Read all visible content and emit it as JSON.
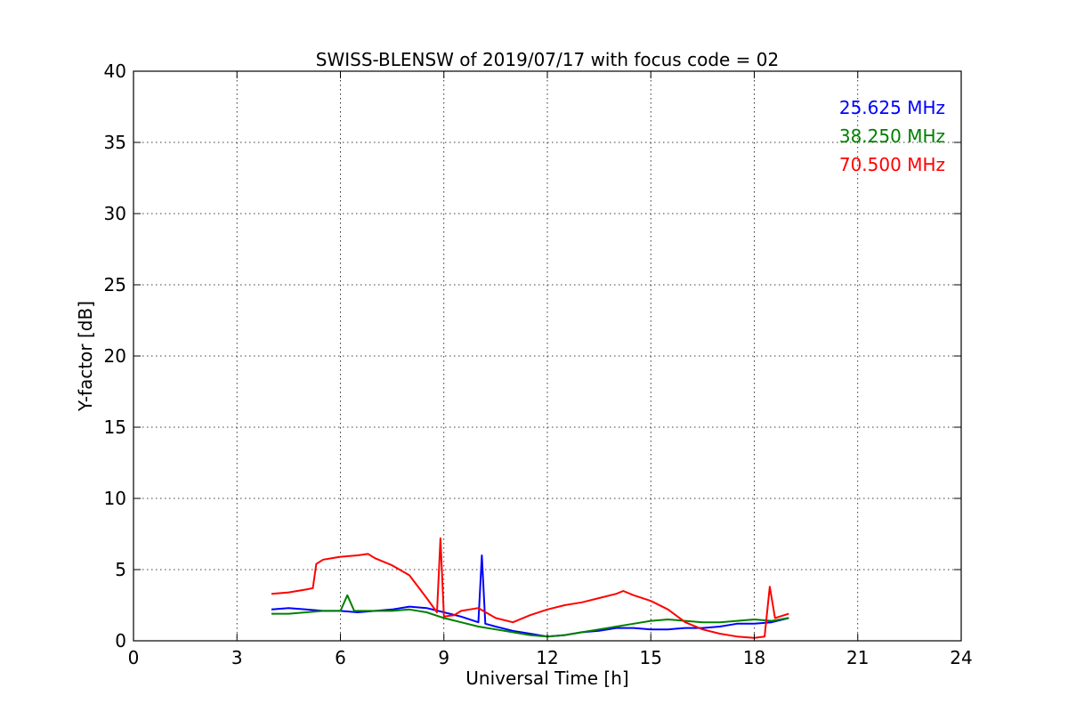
{
  "chart_data": {
    "type": "line",
    "title": "SWISS-BLENSW of 2019/07/17 with focus code = 02",
    "xlabel": "Universal Time [h]",
    "ylabel": "Y-factor [dB]",
    "xlim": [
      0,
      24
    ],
    "ylim": [
      0,
      40
    ],
    "xticks": [
      0,
      3,
      6,
      9,
      12,
      15,
      18,
      21,
      24
    ],
    "yticks": [
      0,
      5,
      10,
      15,
      20,
      25,
      30,
      35,
      40
    ],
    "grid": true,
    "legend_position": "top-right",
    "series": [
      {
        "name": "25.625 MHz",
        "color": "#0000ff",
        "x": [
          4.0,
          4.5,
          5.0,
          5.5,
          6.0,
          6.5,
          7.0,
          7.5,
          8.0,
          8.5,
          9.0,
          9.5,
          10.0,
          10.1,
          10.2,
          10.5,
          11.0,
          11.5,
          12.0,
          12.5,
          13.0,
          13.5,
          14.0,
          14.5,
          15.0,
          15.5,
          16.0,
          16.5,
          17.0,
          17.5,
          18.0,
          18.5,
          19.0
        ],
        "y": [
          2.2,
          2.3,
          2.2,
          2.1,
          2.1,
          2.0,
          2.1,
          2.2,
          2.4,
          2.3,
          2.0,
          1.7,
          1.3,
          6.0,
          1.2,
          1.0,
          0.7,
          0.5,
          0.3,
          0.4,
          0.6,
          0.7,
          0.9,
          0.9,
          0.8,
          0.8,
          0.9,
          0.9,
          1.0,
          1.2,
          1.2,
          1.3,
          1.6
        ]
      },
      {
        "name": "38.250 MHz",
        "color": "#008000",
        "x": [
          4.0,
          4.5,
          5.0,
          5.5,
          6.0,
          6.2,
          6.4,
          7.0,
          7.5,
          8.0,
          8.5,
          9.0,
          9.5,
          10.0,
          10.5,
          11.0,
          11.5,
          12.0,
          12.5,
          13.0,
          13.5,
          14.0,
          14.5,
          15.0,
          15.5,
          16.0,
          16.5,
          17.0,
          17.5,
          18.0,
          18.5,
          19.0
        ],
        "y": [
          1.9,
          1.9,
          2.0,
          2.1,
          2.1,
          3.2,
          2.1,
          2.1,
          2.1,
          2.2,
          2.0,
          1.6,
          1.3,
          1.0,
          0.8,
          0.6,
          0.4,
          0.3,
          0.4,
          0.6,
          0.8,
          1.0,
          1.2,
          1.4,
          1.5,
          1.4,
          1.3,
          1.3,
          1.4,
          1.5,
          1.4,
          1.6
        ]
      },
      {
        "name": "70.500 MHz",
        "color": "#ff0000",
        "x": [
          4.0,
          4.5,
          5.0,
          5.2,
          5.3,
          5.5,
          6.0,
          6.5,
          6.8,
          7.0,
          7.5,
          8.0,
          8.5,
          8.8,
          8.9,
          9.0,
          9.3,
          9.5,
          10.0,
          10.5,
          11.0,
          11.5,
          12.0,
          12.5,
          13.0,
          13.5,
          14.0,
          14.2,
          14.5,
          15.0,
          15.5,
          16.0,
          16.5,
          17.0,
          17.5,
          18.0,
          18.3,
          18.45,
          18.6,
          19.0
        ],
        "y": [
          3.3,
          3.4,
          3.6,
          3.7,
          5.4,
          5.7,
          5.9,
          6.0,
          6.1,
          5.8,
          5.3,
          4.6,
          3.0,
          2.0,
          7.2,
          1.7,
          1.8,
          2.1,
          2.3,
          1.6,
          1.3,
          1.8,
          2.2,
          2.5,
          2.7,
          3.0,
          3.3,
          3.5,
          3.2,
          2.8,
          2.2,
          1.3,
          0.8,
          0.5,
          0.3,
          0.2,
          0.3,
          3.8,
          1.6,
          1.9
        ]
      }
    ]
  }
}
